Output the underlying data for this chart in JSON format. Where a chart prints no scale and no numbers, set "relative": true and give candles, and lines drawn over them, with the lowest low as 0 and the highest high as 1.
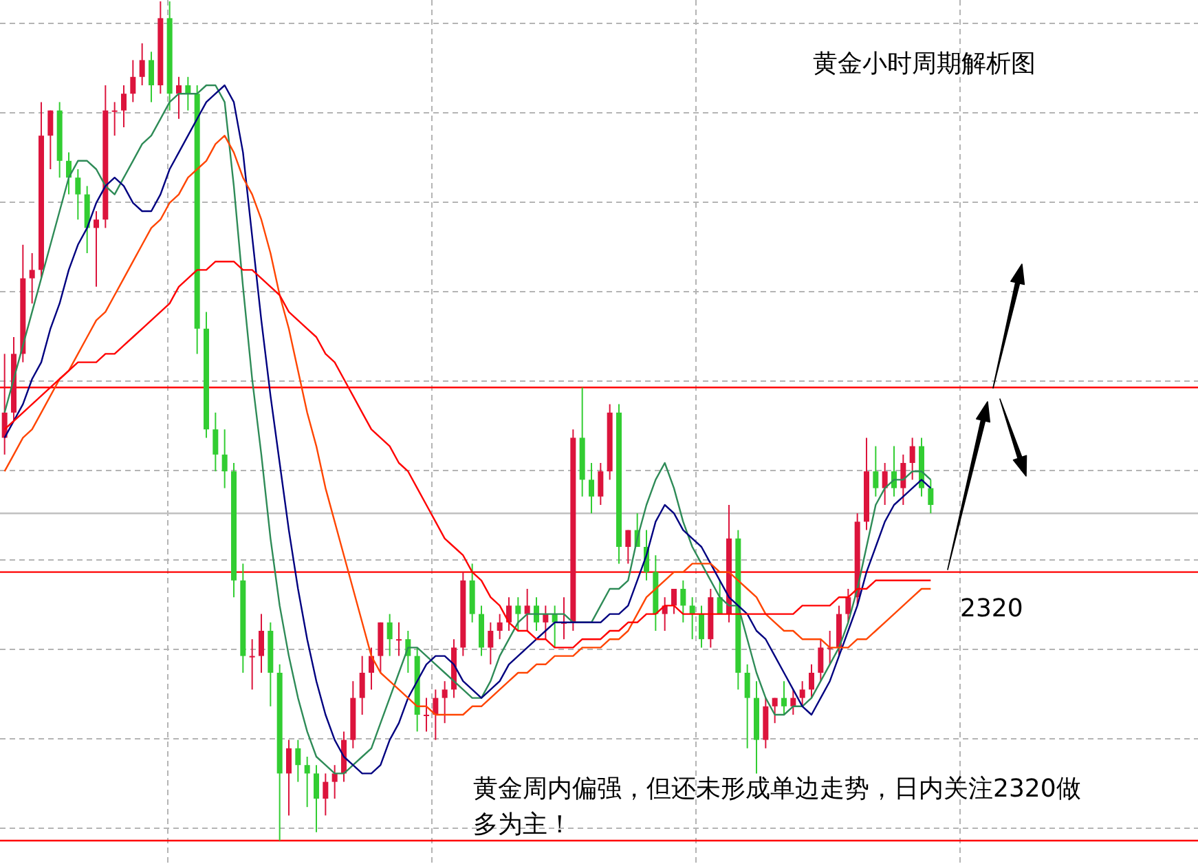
{
  "chart_data": {
    "type": "candlestick",
    "relative": true,
    "grid": true,
    "title": "黄金小时周期解析图",
    "annotations": [
      "黄金周内偏强，但还未形成单边走势，日内关注2320做多为主！",
      "2320"
    ],
    "categories": [
      null,
      null,
      null,
      null,
      null,
      null,
      null,
      null,
      null,
      null,
      null,
      null,
      null,
      null,
      null,
      null,
      null,
      null,
      null,
      null,
      null,
      null,
      null,
      null,
      null,
      null,
      null,
      null,
      null,
      null,
      null,
      null,
      null,
      null,
      null,
      null,
      null,
      null,
      null,
      null,
      null,
      null,
      null,
      null,
      null,
      null,
      null,
      null,
      null,
      null,
      null,
      null,
      null,
      null,
      null,
      null,
      null,
      null,
      null,
      null,
      null,
      null,
      null,
      null,
      null,
      null,
      null,
      null,
      null,
      null,
      null,
      null,
      null,
      null,
      null,
      null,
      null,
      null,
      null,
      null,
      null,
      null,
      null,
      null,
      null,
      null,
      null,
      null,
      null,
      null,
      null,
      null,
      null,
      null,
      null,
      null,
      null,
      null,
      null,
      null,
      null,
      null
    ],
    "ohlc": [
      [
        0.48,
        0.58,
        0.46,
        0.51
      ],
      [
        0.51,
        0.6,
        0.5,
        0.58
      ],
      [
        0.58,
        0.71,
        0.57,
        0.67
      ],
      [
        0.67,
        0.7,
        0.64,
        0.68
      ],
      [
        0.68,
        0.88,
        0.67,
        0.84
      ],
      [
        0.84,
        0.87,
        0.8,
        0.87
      ],
      [
        0.87,
        0.88,
        0.79,
        0.81
      ],
      [
        0.81,
        0.82,
        0.77,
        0.79
      ],
      [
        0.79,
        0.8,
        0.74,
        0.77
      ],
      [
        0.77,
        0.78,
        0.7,
        0.73
      ],
      [
        0.73,
        0.75,
        0.66,
        0.74
      ],
      [
        0.74,
        0.9,
        0.73,
        0.87
      ],
      [
        0.87,
        0.88,
        0.84,
        0.87
      ],
      [
        0.87,
        0.9,
        0.85,
        0.89
      ],
      [
        0.89,
        0.93,
        0.88,
        0.91
      ],
      [
        0.91,
        0.95,
        0.9,
        0.93
      ],
      [
        0.93,
        0.94,
        0.88,
        0.9
      ],
      [
        0.9,
        1.0,
        0.89,
        0.98
      ],
      [
        0.98,
        1.0,
        0.87,
        0.89
      ],
      [
        0.89,
        0.91,
        0.86,
        0.9
      ],
      [
        0.9,
        0.91,
        0.87,
        0.89
      ],
      [
        0.89,
        0.9,
        0.58,
        0.61
      ],
      [
        0.61,
        0.63,
        0.48,
        0.49
      ],
      [
        0.49,
        0.51,
        0.44,
        0.46
      ],
      [
        0.46,
        0.49,
        0.42,
        0.44
      ],
      [
        0.44,
        0.45,
        0.29,
        0.31
      ],
      [
        0.31,
        0.33,
        0.2,
        0.22
      ],
      [
        0.22,
        0.24,
        0.18,
        0.22
      ],
      [
        0.22,
        0.27,
        0.2,
        0.25
      ],
      [
        0.25,
        0.26,
        0.16,
        0.2
      ],
      [
        0.2,
        0.21,
        0.0,
        0.08
      ],
      [
        0.08,
        0.12,
        0.03,
        0.11
      ],
      [
        0.11,
        0.12,
        0.07,
        0.09
      ],
      [
        0.09,
        0.1,
        0.04,
        0.08
      ],
      [
        0.08,
        0.09,
        0.01,
        0.05
      ],
      [
        0.05,
        0.08,
        0.03,
        0.07
      ],
      [
        0.07,
        0.09,
        0.05,
        0.08
      ],
      [
        0.08,
        0.13,
        0.07,
        0.12
      ],
      [
        0.12,
        0.19,
        0.11,
        0.17
      ],
      [
        0.17,
        0.22,
        0.15,
        0.2
      ],
      [
        0.2,
        0.23,
        0.18,
        0.22
      ],
      [
        0.22,
        0.26,
        0.2,
        0.26
      ],
      [
        0.26,
        0.27,
        0.22,
        0.24
      ],
      [
        0.24,
        0.26,
        0.22,
        0.24
      ],
      [
        0.24,
        0.25,
        0.2,
        0.22
      ],
      [
        0.22,
        0.23,
        0.13,
        0.15
      ],
      [
        0.15,
        0.17,
        0.13,
        0.15
      ],
      [
        0.15,
        0.18,
        0.12,
        0.17
      ],
      [
        0.17,
        0.19,
        0.14,
        0.18
      ],
      [
        0.18,
        0.24,
        0.17,
        0.23
      ],
      [
        0.23,
        0.32,
        0.22,
        0.31
      ],
      [
        0.31,
        0.33,
        0.26,
        0.27
      ],
      [
        0.27,
        0.28,
        0.22,
        0.23
      ],
      [
        0.23,
        0.26,
        0.21,
        0.25
      ],
      [
        0.25,
        0.27,
        0.24,
        0.26
      ],
      [
        0.26,
        0.29,
        0.25,
        0.28
      ],
      [
        0.28,
        0.29,
        0.25,
        0.27
      ],
      [
        0.27,
        0.3,
        0.25,
        0.28
      ],
      [
        0.28,
        0.29,
        0.25,
        0.26
      ],
      [
        0.26,
        0.28,
        0.24,
        0.27
      ],
      [
        0.27,
        0.28,
        0.23,
        0.26
      ],
      [
        0.26,
        0.29,
        0.24,
        0.26
      ],
      [
        0.26,
        0.49,
        0.25,
        0.48
      ],
      [
        0.48,
        0.54,
        0.41,
        0.43
      ],
      [
        0.43,
        0.45,
        0.39,
        0.41
      ],
      [
        0.41,
        0.45,
        0.4,
        0.44
      ],
      [
        0.44,
        0.52,
        0.43,
        0.51
      ],
      [
        0.51,
        0.52,
        0.33,
        0.35
      ],
      [
        0.35,
        0.37,
        0.33,
        0.37
      ],
      [
        0.37,
        0.39,
        0.35,
        0.35
      ],
      [
        0.35,
        0.37,
        0.31,
        0.32
      ],
      [
        0.32,
        0.34,
        0.25,
        0.27
      ],
      [
        0.27,
        0.29,
        0.25,
        0.28
      ],
      [
        0.28,
        0.3,
        0.27,
        0.3
      ],
      [
        0.3,
        0.31,
        0.26,
        0.28
      ],
      [
        0.28,
        0.29,
        0.24,
        0.27
      ],
      [
        0.27,
        0.28,
        0.23,
        0.24
      ],
      [
        0.24,
        0.3,
        0.23,
        0.29
      ],
      [
        0.29,
        0.31,
        0.27,
        0.27
      ],
      [
        0.27,
        0.4,
        0.26,
        0.36
      ],
      [
        0.36,
        0.37,
        0.18,
        0.2
      ],
      [
        0.2,
        0.21,
        0.11,
        0.17
      ],
      [
        0.17,
        0.19,
        0.08,
        0.12
      ],
      [
        0.12,
        0.17,
        0.11,
        0.16
      ],
      [
        0.16,
        0.17,
        0.14,
        0.17
      ],
      [
        0.17,
        0.19,
        0.15,
        0.16
      ],
      [
        0.16,
        0.18,
        0.15,
        0.17
      ],
      [
        0.17,
        0.19,
        0.16,
        0.18
      ],
      [
        0.18,
        0.21,
        0.17,
        0.2
      ],
      [
        0.2,
        0.24,
        0.19,
        0.23
      ],
      [
        0.23,
        0.25,
        0.21,
        0.23
      ],
      [
        0.23,
        0.28,
        0.22,
        0.27
      ],
      [
        0.27,
        0.3,
        0.26,
        0.29
      ],
      [
        0.29,
        0.39,
        0.28,
        0.38
      ],
      [
        0.38,
        0.48,
        0.37,
        0.44
      ],
      [
        0.44,
        0.47,
        0.41,
        0.42
      ],
      [
        0.42,
        0.45,
        0.4,
        0.44
      ],
      [
        0.44,
        0.47,
        0.41,
        0.42
      ],
      [
        0.42,
        0.46,
        0.4,
        0.45
      ],
      [
        0.45,
        0.48,
        0.43,
        0.47
      ],
      [
        0.47,
        0.48,
        0.41,
        0.42
      ],
      [
        0.42,
        0.43,
        0.39,
        0.4
      ]
    ],
    "series": [
      {
        "type": "line",
        "color": "#2e8b57",
        "values": [
          0.51,
          0.55,
          0.59,
          0.63,
          0.67,
          0.71,
          0.75,
          0.79,
          0.81,
          0.81,
          0.8,
          0.78,
          0.77,
          0.79,
          0.81,
          0.83,
          0.84,
          0.86,
          0.88,
          0.89,
          0.89,
          0.89,
          0.9,
          0.9,
          0.88,
          0.78,
          0.66,
          0.55,
          0.46,
          0.36,
          0.28,
          0.22,
          0.17,
          0.13,
          0.1,
          0.09,
          0.08,
          0.08,
          0.09,
          0.1,
          0.11,
          0.14,
          0.17,
          0.2,
          0.23,
          0.23,
          0.22,
          0.21,
          0.2,
          0.19,
          0.18,
          0.17,
          0.17,
          0.19,
          0.22,
          0.24,
          0.26,
          0.27,
          0.27,
          0.27,
          0.27,
          0.27,
          0.26,
          0.26,
          0.26,
          0.28,
          0.3,
          0.3,
          0.31,
          0.36,
          0.4,
          0.43,
          0.45,
          0.42,
          0.38,
          0.35,
          0.33,
          0.31,
          0.29,
          0.28,
          0.28,
          0.24,
          0.2,
          0.17,
          0.15,
          0.15,
          0.16,
          0.16,
          0.17,
          0.19,
          0.21,
          0.23,
          0.26,
          0.3,
          0.35,
          0.4,
          0.42,
          0.43,
          0.43,
          0.44,
          0.44,
          0.43
        ]
      },
      {
        "type": "line",
        "color": "#000080",
        "values": [
          0.48,
          0.5,
          0.52,
          0.55,
          0.57,
          0.61,
          0.64,
          0.68,
          0.71,
          0.73,
          0.76,
          0.78,
          0.79,
          0.78,
          0.76,
          0.75,
          0.75,
          0.77,
          0.8,
          0.82,
          0.84,
          0.86,
          0.88,
          0.89,
          0.9,
          0.88,
          0.82,
          0.72,
          0.62,
          0.53,
          0.45,
          0.37,
          0.3,
          0.24,
          0.19,
          0.15,
          0.12,
          0.1,
          0.09,
          0.08,
          0.08,
          0.09,
          0.12,
          0.14,
          0.17,
          0.19,
          0.21,
          0.22,
          0.22,
          0.21,
          0.19,
          0.18,
          0.17,
          0.18,
          0.19,
          0.21,
          0.22,
          0.23,
          0.24,
          0.25,
          0.26,
          0.26,
          0.26,
          0.26,
          0.26,
          0.26,
          0.27,
          0.27,
          0.28,
          0.31,
          0.34,
          0.38,
          0.4,
          0.39,
          0.37,
          0.36,
          0.35,
          0.33,
          0.31,
          0.29,
          0.28,
          0.27,
          0.25,
          0.24,
          0.22,
          0.2,
          0.18,
          0.16,
          0.15,
          0.17,
          0.19,
          0.22,
          0.25,
          0.28,
          0.32,
          0.35,
          0.38,
          0.4,
          0.41,
          0.42,
          0.43,
          0.42
        ]
      },
      {
        "type": "line",
        "color": "#ff4500",
        "values": [
          0.44,
          0.46,
          0.48,
          0.49,
          0.51,
          0.53,
          0.55,
          0.56,
          0.58,
          0.6,
          0.62,
          0.63,
          0.65,
          0.67,
          0.69,
          0.71,
          0.73,
          0.74,
          0.76,
          0.77,
          0.79,
          0.8,
          0.81,
          0.83,
          0.84,
          0.82,
          0.79,
          0.77,
          0.74,
          0.7,
          0.65,
          0.61,
          0.56,
          0.51,
          0.47,
          0.42,
          0.38,
          0.34,
          0.3,
          0.26,
          0.22,
          0.2,
          0.19,
          0.18,
          0.17,
          0.16,
          0.16,
          0.15,
          0.15,
          0.15,
          0.15,
          0.16,
          0.16,
          0.17,
          0.18,
          0.19,
          0.2,
          0.2,
          0.21,
          0.21,
          0.22,
          0.22,
          0.22,
          0.23,
          0.23,
          0.23,
          0.24,
          0.24,
          0.25,
          0.27,
          0.29,
          0.3,
          0.31,
          0.32,
          0.32,
          0.33,
          0.33,
          0.33,
          0.32,
          0.32,
          0.31,
          0.3,
          0.29,
          0.27,
          0.26,
          0.25,
          0.25,
          0.24,
          0.24,
          0.24,
          0.23,
          0.23,
          0.23,
          0.24,
          0.24,
          0.25,
          0.26,
          0.27,
          0.28,
          0.29,
          0.3,
          0.3
        ]
      },
      {
        "type": "line",
        "color": "#ff0000",
        "values": [
          0.49,
          0.5,
          0.51,
          0.52,
          0.53,
          0.54,
          0.55,
          0.56,
          0.57,
          0.57,
          0.57,
          0.58,
          0.58,
          0.59,
          0.6,
          0.61,
          0.62,
          0.63,
          0.64,
          0.66,
          0.67,
          0.68,
          0.68,
          0.69,
          0.69,
          0.69,
          0.68,
          0.68,
          0.67,
          0.66,
          0.65,
          0.63,
          0.62,
          0.61,
          0.6,
          0.58,
          0.57,
          0.55,
          0.53,
          0.51,
          0.49,
          0.48,
          0.47,
          0.45,
          0.44,
          0.42,
          0.4,
          0.38,
          0.36,
          0.35,
          0.34,
          0.32,
          0.31,
          0.29,
          0.28,
          0.26,
          0.25,
          0.25,
          0.24,
          0.24,
          0.23,
          0.23,
          0.23,
          0.24,
          0.24,
          0.24,
          0.25,
          0.25,
          0.26,
          0.26,
          0.27,
          0.27,
          0.28,
          0.28,
          0.27,
          0.27,
          0.27,
          0.27,
          0.27,
          0.27,
          0.27,
          0.27,
          0.27,
          0.27,
          0.27,
          0.27,
          0.27,
          0.28,
          0.28,
          0.28,
          0.28,
          0.29,
          0.29,
          0.3,
          0.3,
          0.31,
          0.31,
          0.31,
          0.31,
          0.31,
          0.31,
          0.31
        ]
      }
    ],
    "ref_lines": [
      {
        "axis": "y",
        "value": 0.54,
        "color": "#ff0000"
      },
      {
        "axis": "y",
        "value": 0.32,
        "color": "#ff0000"
      },
      {
        "axis": "y",
        "value": 0.39,
        "color": "#c0c0c0"
      },
      {
        "axis": "y",
        "value": 0.0,
        "color": "#ff0000"
      }
    ]
  }
}
